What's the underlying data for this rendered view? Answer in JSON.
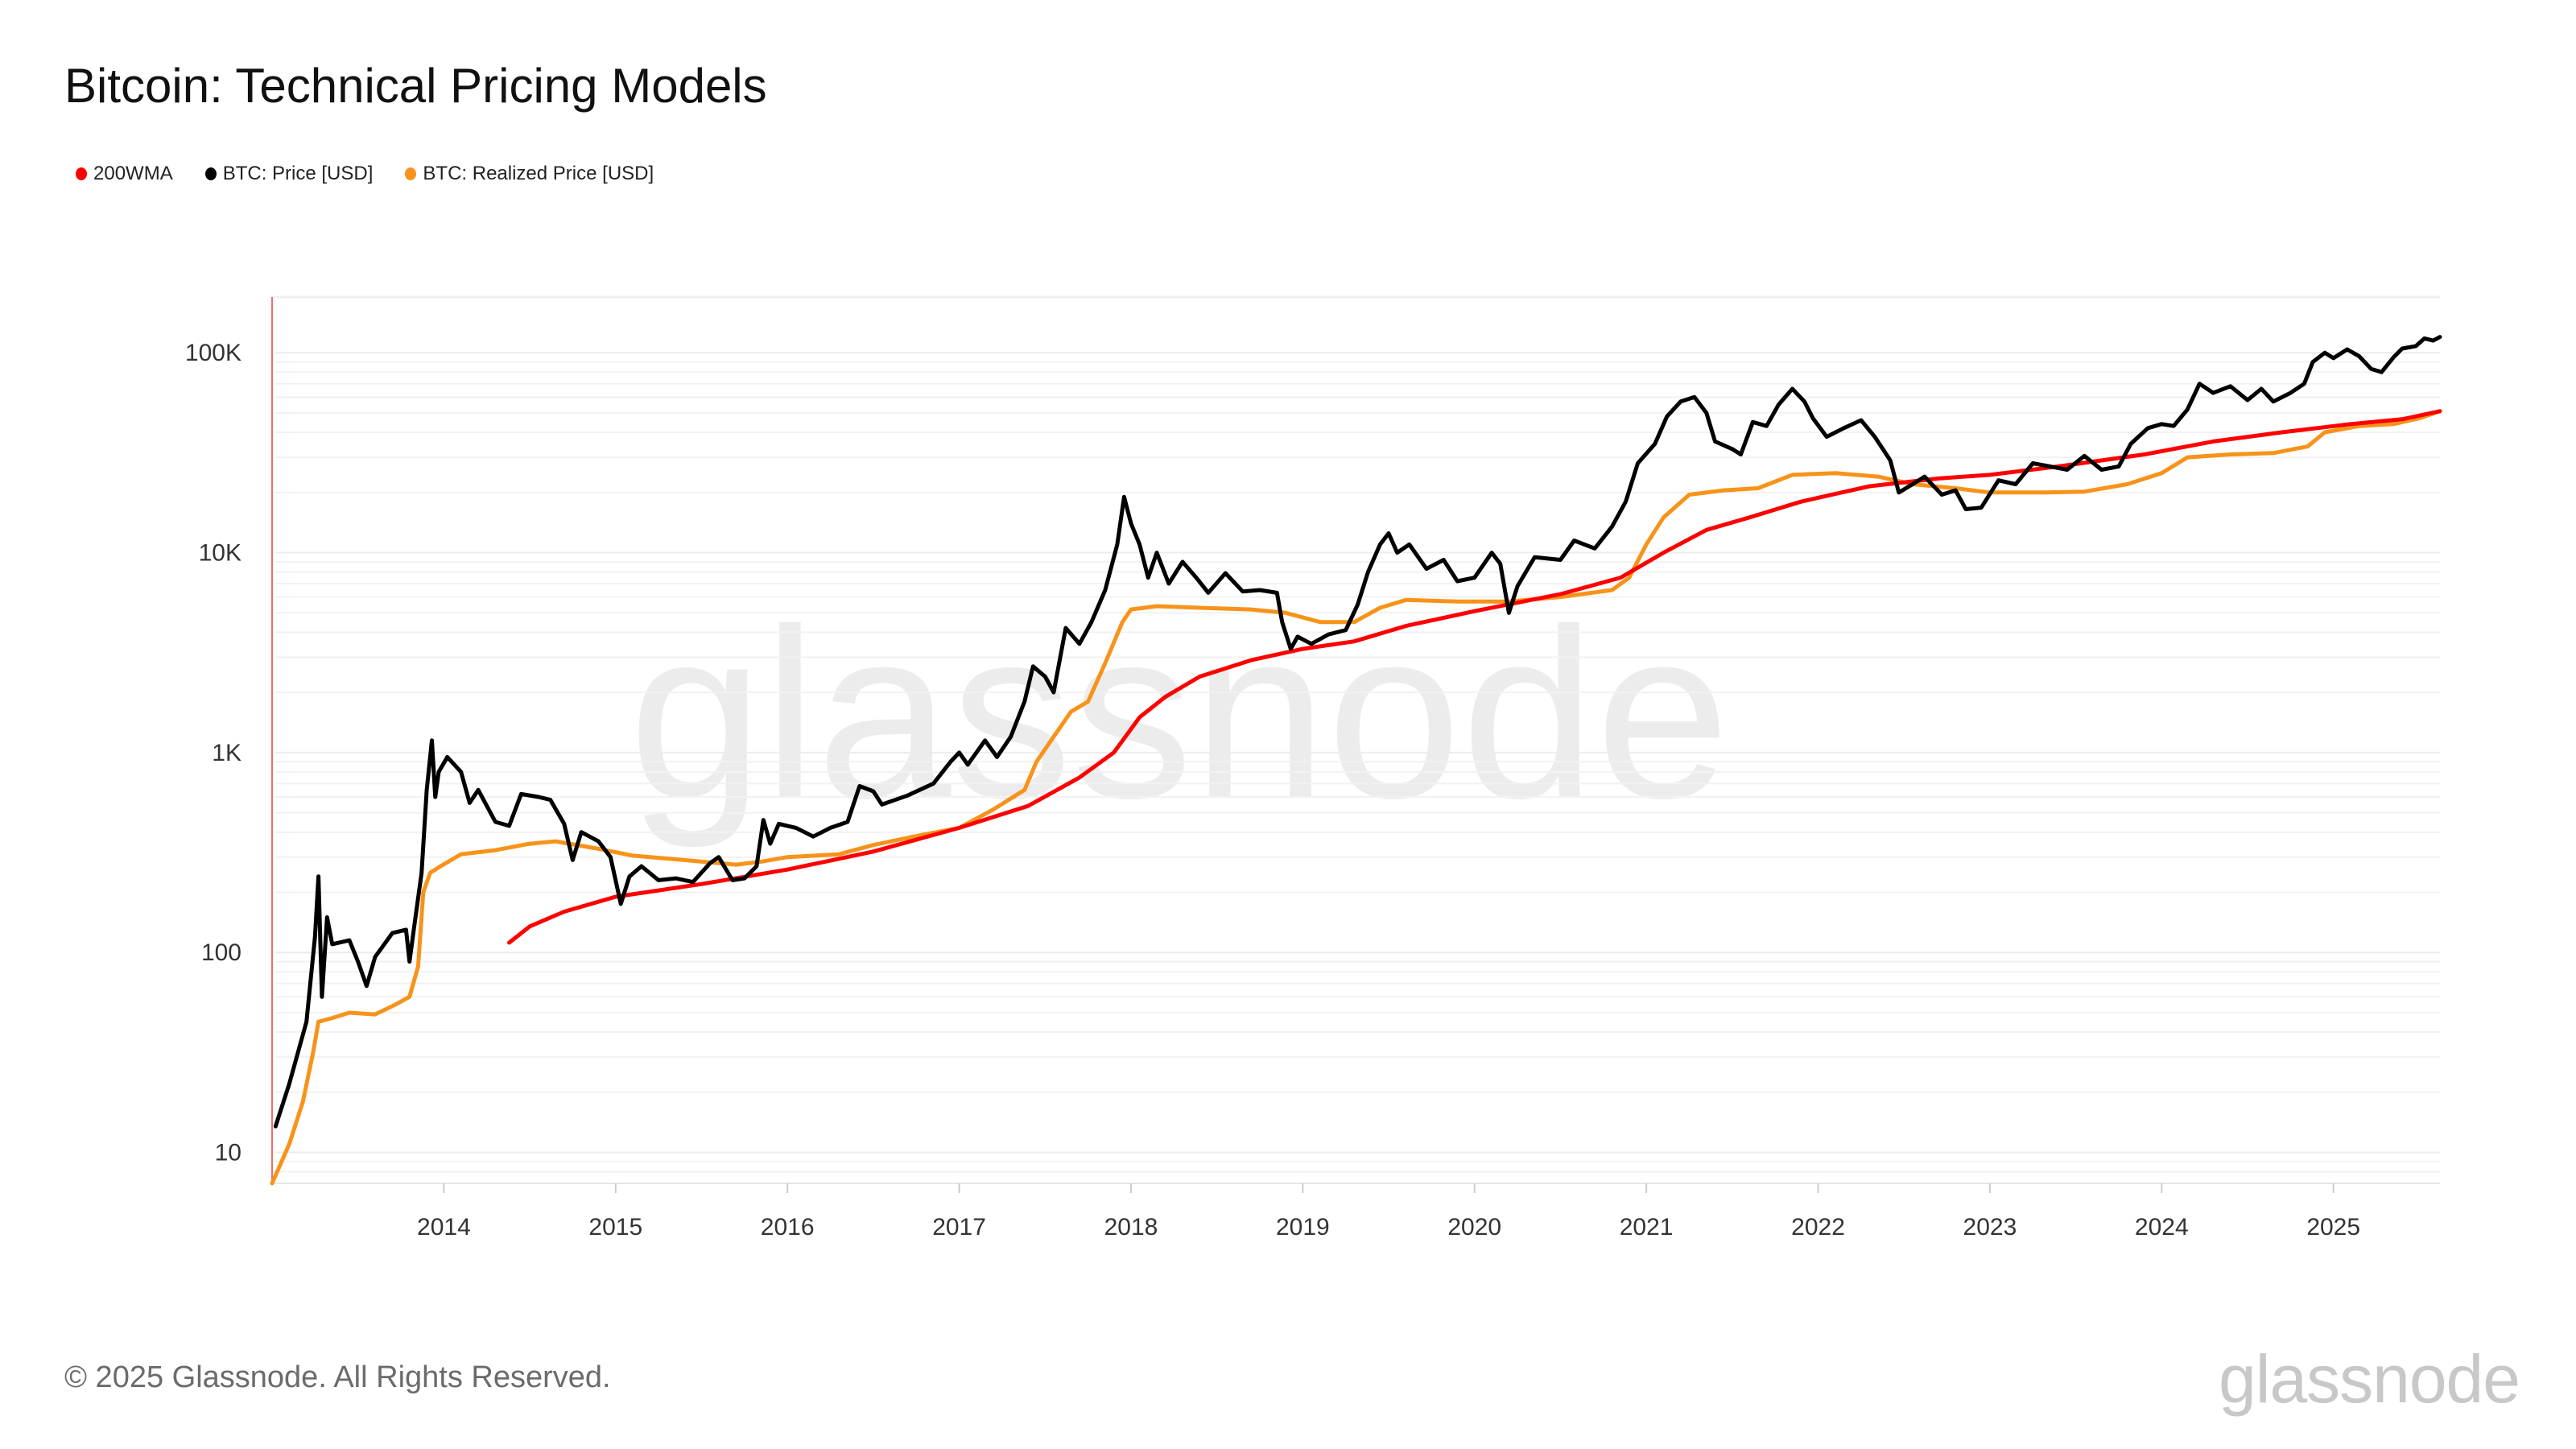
{
  "title": "Bitcoin: Technical Pricing Models",
  "footer": "© 2025 Glassnode. All Rights Reserved.",
  "logo_text": "glassnode",
  "watermark": "glassnode",
  "legend": [
    {
      "label": "200WMA",
      "color": "#ff0000"
    },
    {
      "label": "BTC: Price [USD]",
      "color": "#000000"
    },
    {
      "label": "BTC: Realized Price [USD]",
      "color": "#f7931a"
    }
  ],
  "chart_data": {
    "type": "line",
    "title": "Bitcoin: Technical Pricing Models",
    "y_scale": "log",
    "ylim": [
      7,
      190000
    ],
    "xlim": [
      2013.0,
      2025.62
    ],
    "grid": true,
    "legend_position": "top-left",
    "y_ticks": [
      {
        "value": 10,
        "label": "10"
      },
      {
        "value": 100,
        "label": "100"
      },
      {
        "value": 1000,
        "label": "1K"
      },
      {
        "value": 10000,
        "label": "10K"
      },
      {
        "value": 100000,
        "label": "100K"
      }
    ],
    "x_ticks": [
      "2014",
      "2015",
      "2016",
      "2017",
      "2018",
      "2019",
      "2020",
      "2021",
      "2022",
      "2023",
      "2024",
      "2025"
    ],
    "series": [
      {
        "name": "BTC: Price [USD]",
        "color": "#000000",
        "points": [
          [
            2013.02,
            13.5
          ],
          [
            2013.1,
            22
          ],
          [
            2013.2,
            45
          ],
          [
            2013.25,
            120
          ],
          [
            2013.27,
            240
          ],
          [
            2013.29,
            60
          ],
          [
            2013.32,
            150
          ],
          [
            2013.35,
            110
          ],
          [
            2013.45,
            115
          ],
          [
            2013.5,
            90
          ],
          [
            2013.55,
            68
          ],
          [
            2013.6,
            95
          ],
          [
            2013.7,
            125
          ],
          [
            2013.78,
            130
          ],
          [
            2013.8,
            90
          ],
          [
            2013.83,
            140
          ],
          [
            2013.87,
            250
          ],
          [
            2013.9,
            650
          ],
          [
            2013.93,
            1150
          ],
          [
            2013.95,
            600
          ],
          [
            2013.97,
            800
          ],
          [
            2014.02,
            950
          ],
          [
            2014.1,
            800
          ],
          [
            2014.15,
            560
          ],
          [
            2014.2,
            650
          ],
          [
            2014.3,
            450
          ],
          [
            2014.38,
            430
          ],
          [
            2014.45,
            620
          ],
          [
            2014.55,
            600
          ],
          [
            2014.62,
            580
          ],
          [
            2014.7,
            440
          ],
          [
            2014.75,
            290
          ],
          [
            2014.8,
            400
          ],
          [
            2014.9,
            360
          ],
          [
            2014.97,
            300
          ],
          [
            2015.03,
            175
          ],
          [
            2015.08,
            240
          ],
          [
            2015.15,
            270
          ],
          [
            2015.25,
            230
          ],
          [
            2015.35,
            235
          ],
          [
            2015.45,
            225
          ],
          [
            2015.55,
            280
          ],
          [
            2015.6,
            300
          ],
          [
            2015.68,
            230
          ],
          [
            2015.75,
            235
          ],
          [
            2015.82,
            270
          ],
          [
            2015.86,
            460
          ],
          [
            2015.9,
            350
          ],
          [
            2015.95,
            440
          ],
          [
            2016.05,
            420
          ],
          [
            2016.15,
            380
          ],
          [
            2016.25,
            420
          ],
          [
            2016.35,
            450
          ],
          [
            2016.42,
            680
          ],
          [
            2016.5,
            640
          ],
          [
            2016.55,
            550
          ],
          [
            2016.7,
            610
          ],
          [
            2016.85,
            700
          ],
          [
            2016.95,
            900
          ],
          [
            2017.0,
            1000
          ],
          [
            2017.05,
            870
          ],
          [
            2017.15,
            1150
          ],
          [
            2017.22,
            950
          ],
          [
            2017.3,
            1200
          ],
          [
            2017.38,
            1800
          ],
          [
            2017.43,
            2700
          ],
          [
            2017.5,
            2400
          ],
          [
            2017.55,
            2000
          ],
          [
            2017.62,
            4200
          ],
          [
            2017.7,
            3500
          ],
          [
            2017.77,
            4500
          ],
          [
            2017.85,
            6500
          ],
          [
            2017.92,
            11000
          ],
          [
            2017.96,
            19000
          ],
          [
            2018.0,
            14000
          ],
          [
            2018.05,
            11000
          ],
          [
            2018.1,
            7500
          ],
          [
            2018.15,
            10000
          ],
          [
            2018.22,
            7000
          ],
          [
            2018.3,
            9000
          ],
          [
            2018.38,
            7500
          ],
          [
            2018.45,
            6300
          ],
          [
            2018.55,
            7900
          ],
          [
            2018.65,
            6400
          ],
          [
            2018.75,
            6500
          ],
          [
            2018.85,
            6300
          ],
          [
            2018.88,
            4500
          ],
          [
            2018.93,
            3300
          ],
          [
            2018.97,
            3800
          ],
          [
            2019.05,
            3500
          ],
          [
            2019.15,
            3900
          ],
          [
            2019.25,
            4100
          ],
          [
            2019.32,
            5500
          ],
          [
            2019.38,
            8000
          ],
          [
            2019.45,
            11000
          ],
          [
            2019.5,
            12500
          ],
          [
            2019.55,
            10000
          ],
          [
            2019.62,
            11000
          ],
          [
            2019.72,
            8300
          ],
          [
            2019.82,
            9200
          ],
          [
            2019.9,
            7200
          ],
          [
            2020.0,
            7500
          ],
          [
            2020.1,
            10000
          ],
          [
            2020.15,
            8800
          ],
          [
            2020.2,
            5000
          ],
          [
            2020.25,
            6800
          ],
          [
            2020.35,
            9500
          ],
          [
            2020.5,
            9200
          ],
          [
            2020.58,
            11500
          ],
          [
            2020.7,
            10500
          ],
          [
            2020.8,
            13500
          ],
          [
            2020.88,
            18000
          ],
          [
            2020.95,
            28000
          ],
          [
            2021.05,
            35000
          ],
          [
            2021.12,
            48000
          ],
          [
            2021.2,
            57000
          ],
          [
            2021.28,
            60000
          ],
          [
            2021.35,
            50000
          ],
          [
            2021.4,
            36000
          ],
          [
            2021.5,
            33000
          ],
          [
            2021.55,
            31000
          ],
          [
            2021.62,
            45000
          ],
          [
            2021.7,
            43000
          ],
          [
            2021.77,
            55000
          ],
          [
            2021.85,
            66000
          ],
          [
            2021.92,
            57000
          ],
          [
            2021.97,
            47000
          ],
          [
            2022.05,
            38000
          ],
          [
            2022.15,
            42000
          ],
          [
            2022.25,
            46000
          ],
          [
            2022.33,
            38000
          ],
          [
            2022.42,
            29000
          ],
          [
            2022.47,
            20000
          ],
          [
            2022.55,
            22000
          ],
          [
            2022.62,
            24000
          ],
          [
            2022.72,
            19500
          ],
          [
            2022.8,
            20500
          ],
          [
            2022.86,
            16500
          ],
          [
            2022.95,
            16800
          ],
          [
            2023.05,
            23000
          ],
          [
            2023.15,
            22000
          ],
          [
            2023.25,
            28000
          ],
          [
            2023.35,
            27000
          ],
          [
            2023.45,
            26000
          ],
          [
            2023.55,
            30500
          ],
          [
            2023.65,
            26000
          ],
          [
            2023.75,
            27000
          ],
          [
            2023.82,
            35000
          ],
          [
            2023.92,
            42000
          ],
          [
            2024.0,
            44000
          ],
          [
            2024.07,
            43000
          ],
          [
            2024.15,
            52000
          ],
          [
            2024.22,
            70000
          ],
          [
            2024.3,
            63000
          ],
          [
            2024.4,
            68000
          ],
          [
            2024.5,
            58000
          ],
          [
            2024.58,
            66000
          ],
          [
            2024.65,
            57000
          ],
          [
            2024.75,
            63000
          ],
          [
            2024.83,
            70000
          ],
          [
            2024.88,
            90000
          ],
          [
            2024.95,
            100000
          ],
          [
            2025.0,
            94000
          ],
          [
            2025.08,
            104000
          ],
          [
            2025.15,
            96000
          ],
          [
            2025.22,
            83000
          ],
          [
            2025.28,
            80000
          ],
          [
            2025.35,
            95000
          ],
          [
            2025.4,
            105000
          ],
          [
            2025.48,
            108000
          ],
          [
            2025.53,
            118000
          ],
          [
            2025.58,
            115000
          ],
          [
            2025.62,
            120000
          ]
        ]
      },
      {
        "name": "BTC: Realized Price [USD]",
        "color": "#f7931a",
        "points": [
          [
            2013.0,
            7
          ],
          [
            2013.1,
            11
          ],
          [
            2013.18,
            18
          ],
          [
            2013.24,
            32
          ],
          [
            2013.27,
            45
          ],
          [
            2013.35,
            47
          ],
          [
            2013.45,
            50
          ],
          [
            2013.6,
            49
          ],
          [
            2013.72,
            55
          ],
          [
            2013.8,
            60
          ],
          [
            2013.85,
            85
          ],
          [
            2013.88,
            200
          ],
          [
            2013.92,
            250
          ],
          [
            2013.98,
            270
          ],
          [
            2014.1,
            310
          ],
          [
            2014.3,
            325
          ],
          [
            2014.5,
            350
          ],
          [
            2014.65,
            360
          ],
          [
            2014.9,
            330
          ],
          [
            2015.1,
            305
          ],
          [
            2015.4,
            290
          ],
          [
            2015.7,
            275
          ],
          [
            2015.85,
            285
          ],
          [
            2016.0,
            300
          ],
          [
            2016.3,
            310
          ],
          [
            2016.5,
            345
          ],
          [
            2016.8,
            390
          ],
          [
            2017.0,
            420
          ],
          [
            2017.2,
            520
          ],
          [
            2017.38,
            650
          ],
          [
            2017.45,
            900
          ],
          [
            2017.55,
            1200
          ],
          [
            2017.65,
            1600
          ],
          [
            2017.75,
            1800
          ],
          [
            2017.85,
            2800
          ],
          [
            2017.95,
            4500
          ],
          [
            2018.0,
            5200
          ],
          [
            2018.15,
            5400
          ],
          [
            2018.4,
            5300
          ],
          [
            2018.7,
            5200
          ],
          [
            2018.9,
            5000
          ],
          [
            2019.1,
            4500
          ],
          [
            2019.3,
            4500
          ],
          [
            2019.45,
            5300
          ],
          [
            2019.6,
            5800
          ],
          [
            2019.9,
            5700
          ],
          [
            2020.2,
            5700
          ],
          [
            2020.5,
            6000
          ],
          [
            2020.8,
            6500
          ],
          [
            2020.9,
            7500
          ],
          [
            2021.0,
            11000
          ],
          [
            2021.1,
            15000
          ],
          [
            2021.25,
            19500
          ],
          [
            2021.45,
            20500
          ],
          [
            2021.65,
            21000
          ],
          [
            2021.85,
            24500
          ],
          [
            2022.1,
            25000
          ],
          [
            2022.35,
            24000
          ],
          [
            2022.55,
            22000
          ],
          [
            2022.8,
            21000
          ],
          [
            2023.0,
            20000
          ],
          [
            2023.3,
            20000
          ],
          [
            2023.55,
            20200
          ],
          [
            2023.8,
            22000
          ],
          [
            2024.0,
            25000
          ],
          [
            2024.15,
            30000
          ],
          [
            2024.4,
            31000
          ],
          [
            2024.65,
            31500
          ],
          [
            2024.85,
            34000
          ],
          [
            2024.95,
            40000
          ],
          [
            2025.15,
            43000
          ],
          [
            2025.35,
            44000
          ],
          [
            2025.5,
            47000
          ],
          [
            2025.62,
            51000
          ]
        ]
      },
      {
        "name": "200WMA",
        "color": "#ff0000",
        "points": [
          [
            2014.38,
            112
          ],
          [
            2014.5,
            135
          ],
          [
            2014.7,
            160
          ],
          [
            2015.0,
            190
          ],
          [
            2015.5,
            220
          ],
          [
            2016.0,
            260
          ],
          [
            2016.5,
            320
          ],
          [
            2017.0,
            420
          ],
          [
            2017.4,
            540
          ],
          [
            2017.7,
            750
          ],
          [
            2017.9,
            1000
          ],
          [
            2018.05,
            1500
          ],
          [
            2018.2,
            1900
          ],
          [
            2018.4,
            2400
          ],
          [
            2018.7,
            2900
          ],
          [
            2019.0,
            3300
          ],
          [
            2019.3,
            3600
          ],
          [
            2019.6,
            4300
          ],
          [
            2020.0,
            5100
          ],
          [
            2020.5,
            6200
          ],
          [
            2020.85,
            7500
          ],
          [
            2021.1,
            10000
          ],
          [
            2021.35,
            13000
          ],
          [
            2021.6,
            15000
          ],
          [
            2021.9,
            18000
          ],
          [
            2022.3,
            21500
          ],
          [
            2022.7,
            23500
          ],
          [
            2023.0,
            24500
          ],
          [
            2023.4,
            27000
          ],
          [
            2023.9,
            31000
          ],
          [
            2024.3,
            36000
          ],
          [
            2024.7,
            40000
          ],
          [
            2025.1,
            44000
          ],
          [
            2025.4,
            46500
          ],
          [
            2025.62,
            51000
          ]
        ]
      }
    ]
  }
}
